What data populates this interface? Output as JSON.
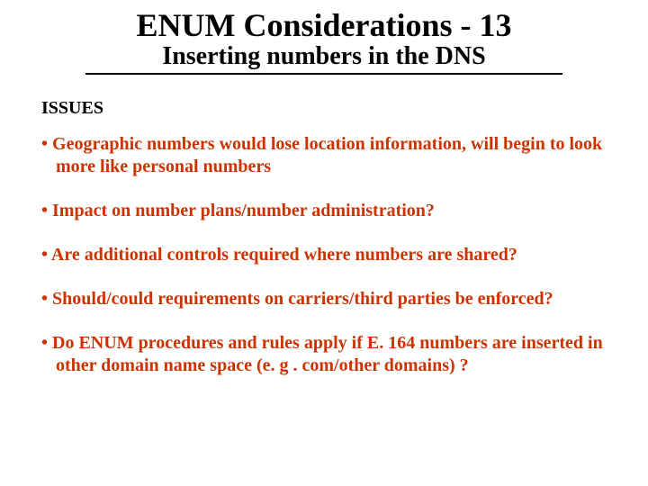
{
  "title": "ENUM Considerations - 13",
  "subtitle": "Inserting numbers in the DNS",
  "issues_label": "ISSUES",
  "bullets": [
    "Geographic numbers would lose location information, will begin to look more like personal numbers",
    "Impact on number plans/number administration?",
    "Are additional controls required where numbers are shared?",
    "Should/could requirements on carriers/third parties be enforced?",
    " Do ENUM procedures and rules apply if E. 164 numbers are inserted in other domain name space (e. g . com/other domains) ?"
  ],
  "colors": {
    "title_color": "#000000",
    "bullet_color": "#cc3300",
    "underline_color": "#000000",
    "background": "#ffffff"
  },
  "fonts": {
    "family": "Times New Roman",
    "title_size_pt": 27,
    "subtitle_size_pt": 21,
    "issues_size_pt": 15,
    "bullet_size_pt": 15
  }
}
